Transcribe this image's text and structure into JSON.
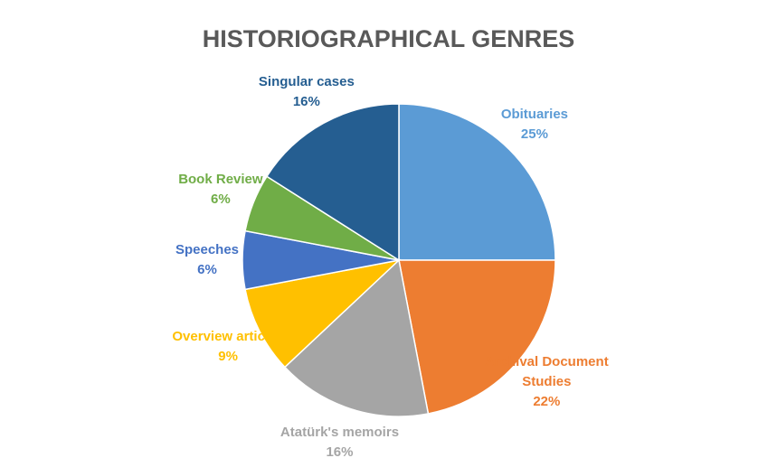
{
  "chart_data": {
    "type": "pie",
    "title": "HISTORIOGRAPHICAL GENRES",
    "categories": [
      "Obituaries",
      "Archival Document Studies",
      "Atatürk's memoirs",
      "Overview articles",
      "Speeches",
      "Book Review",
      "Singular cases"
    ],
    "values": [
      25,
      22,
      16,
      9,
      6,
      6,
      16
    ],
    "value_labels": [
      "25%",
      "22%",
      "16%",
      "9%",
      "6%",
      "6%",
      "16%"
    ],
    "colors": [
      "#5b9bd5",
      "#ed7d31",
      "#a5a5a5",
      "#ffc000",
      "#4472c4",
      "#70ad47",
      "#255e91"
    ]
  }
}
